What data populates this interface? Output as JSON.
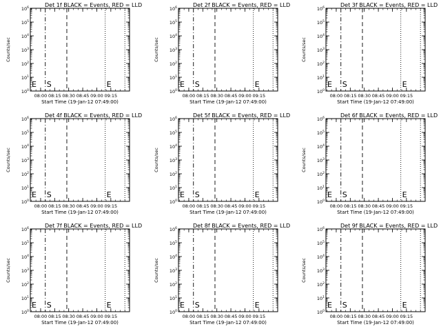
{
  "chart_data": {
    "type": "line",
    "xlabel": "Start Time (19-Jan-12 07:49:00)",
    "ylabel": "Counts/sec",
    "x_ticks": [
      "08:00",
      "08:15",
      "08:30",
      "08:45",
      "09:00",
      "09:15"
    ],
    "y_ticks": [
      "10^0",
      "10^1",
      "10^2",
      "10^3",
      "10^4",
      "10^5",
      "10^6"
    ],
    "y_scale": "log",
    "ylim": [
      1,
      1000000
    ],
    "xlim": [
      "07:49:00",
      "09:35:00"
    ],
    "series": [],
    "markers": [
      {
        "time": "08:05",
        "style": "dash-dot",
        "label": "S"
      },
      {
        "time": "08:28",
        "style": "dashed",
        "label": ""
      },
      {
        "time": "09:09",
        "style": "dotted",
        "label": "E"
      },
      {
        "time": "09:30",
        "style": "dotted",
        "label": ""
      },
      {
        "time": "07:49",
        "style": "none",
        "label": "E"
      }
    ],
    "panels": [
      {
        "title": "Det 1f BLACK = Events, RED = LLD",
        "xlabel": "Start Time (19-Jan-12 07:49:00)"
      },
      {
        "title": "Det 2f BLACK = Events, RED = LLD",
        "xlabel": "Start Time (19-Jan-12 07:49:00)"
      },
      {
        "title": "Det 3f BLACK = Events, RED = LLD",
        "xlabel": "Start Time (19-Jan-12 07:49:00)"
      },
      {
        "title": "Det 4f BLACK = Events, RED = LLD",
        "xlabel": "Start Time (19-Jan-12 07:49:00)"
      },
      {
        "title": "Det 5f BLACK = Events, RED = LLD",
        "xlabel": "Start Time (19-Jan-12 07:49:00)"
      },
      {
        "title": "Det 6f BLACK = Events, RED = LLD",
        "xlabel": "Start Time (19-Jan-12 07:49:00)"
      },
      {
        "title": "Det 7f BLACK = Events, RED = LLD",
        "xlabel": "Start Time (19-Jan-12 07:49:00)"
      },
      {
        "title": "Det 8f BLACK = Events, RED = LLD",
        "xlabel": "Start Time (19-Jan-12 07:49:00)"
      },
      {
        "title": "Det 9f BLACK = Events, RED = LLD",
        "xlabel": "Start Time (19-Jan-12 07:49:00)"
      }
    ]
  }
}
